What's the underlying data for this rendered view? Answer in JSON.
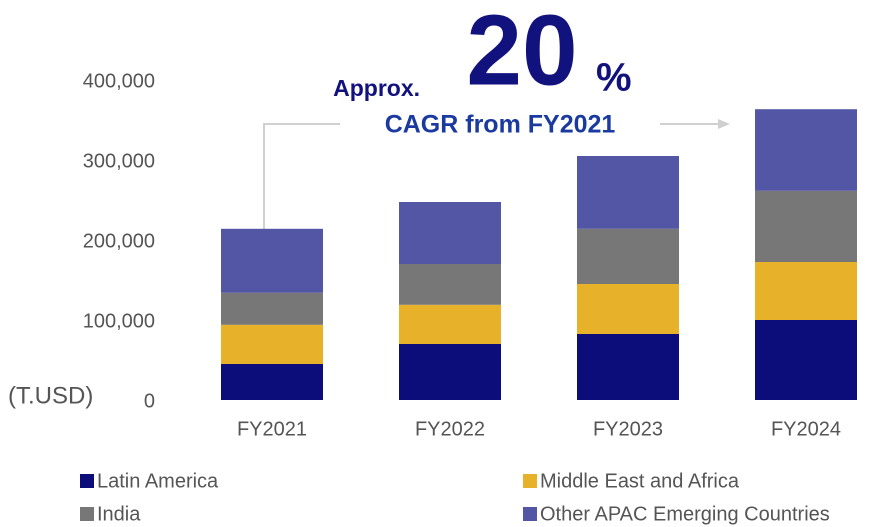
{
  "chart_data": {
    "type": "stacked_bar",
    "categories": [
      "FY2021",
      "FY2022",
      "FY2023",
      "FY2024"
    ],
    "series": [
      {
        "name": "Latin America",
        "color": "#0c0c7a",
        "values": [
          45000,
          70000,
          82500,
          100000
        ]
      },
      {
        "name": "Middle East and Africa",
        "color": "#e8b12a",
        "values": [
          49000,
          49000,
          62500,
          72500
        ]
      },
      {
        "name": "India",
        "color": "#777777",
        "values": [
          40000,
          51000,
          69000,
          89000
        ]
      },
      {
        "name": "Other APAC Emerging Countries",
        "color": "#5356a4",
        "values": [
          80000,
          77500,
          91000,
          102000
        ]
      }
    ],
    "ylim": [
      0,
      400000
    ],
    "yticks": [
      0,
      {
        "value": 100000,
        "label": "100,000"
      },
      {
        "value": 200000,
        "label": "200,000"
      },
      {
        "value": 300000,
        "label": "300,000"
      },
      {
        "value": 400000,
        "label": "400,000"
      }
    ],
    "y_unit": "(T.USD)",
    "annotation": {
      "prefix": "Approx.",
      "number": "20",
      "suffix": "%",
      "text": "CAGR from FY2021"
    },
    "grid": false
  }
}
